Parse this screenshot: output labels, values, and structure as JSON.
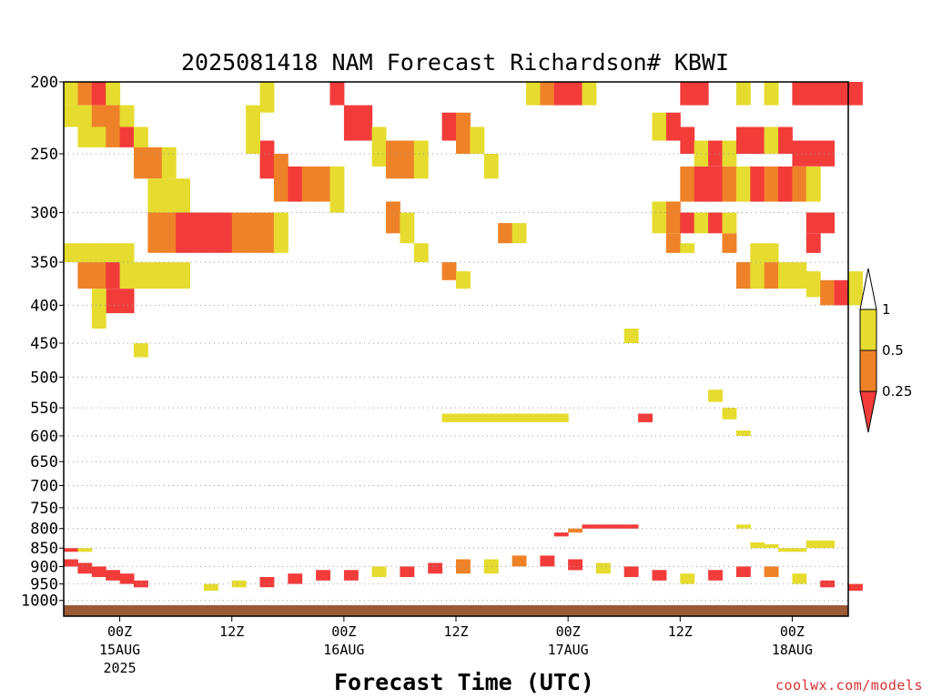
{
  "chart_data": {
    "type": "heatmap",
    "title": "2025081418 NAM Forecast Richardson# KBWI",
    "xlabel": "Forecast Time (UTC)",
    "ylabel": "",
    "y_ticks": [
      200,
      250,
      300,
      350,
      400,
      450,
      500,
      550,
      600,
      650,
      700,
      750,
      800,
      850,
      900,
      950,
      1000
    ],
    "y_scale": "log-pressure (inverted)",
    "x_ticks": [
      {
        "hour": 6,
        "label": "00Z",
        "sub": "15AUG",
        "sub2": "2025"
      },
      {
        "hour": 18,
        "label": "12Z",
        "sub": "",
        "sub2": ""
      },
      {
        "hour": 30,
        "label": "00Z",
        "sub": "16AUG",
        "sub2": ""
      },
      {
        "hour": 42,
        "label": "12Z",
        "sub": "",
        "sub2": ""
      },
      {
        "hour": 54,
        "label": "00Z",
        "sub": "17AUG",
        "sub2": ""
      },
      {
        "hour": 66,
        "label": "12Z",
        "sub": "",
        "sub2": ""
      },
      {
        "hour": 78,
        "label": "00Z",
        "sub": "18AUG",
        "sub2": ""
      }
    ],
    "x_range_hours": [
      0,
      84
    ],
    "grid": "dotted horizontal at pressure levels",
    "legend": {
      "placement": "right",
      "levels": [
        {
          "label": "1",
          "color": "#ffffff"
        },
        {
          "label": "0.5",
          "color": "#e5dc2f"
        },
        {
          "label": "0.25",
          "color": "#ef8228"
        },
        {
          "label": "",
          "color": "#f23c3a"
        }
      ]
    },
    "colors": {
      "lt1": "#e5dc2f",
      "lt05": "#ef8228",
      "lt025": "#f23c3a",
      "ground": "#9a5a36"
    },
    "cells": [
      [
        0,
        200,
        215,
        "y"
      ],
      [
        1,
        200,
        215,
        "o"
      ],
      [
        2,
        200,
        215,
        "r"
      ],
      [
        3,
        200,
        215,
        "y"
      ],
      [
        0,
        215,
        230,
        "y"
      ],
      [
        1,
        215,
        230,
        "y"
      ],
      [
        2,
        215,
        230,
        "o"
      ],
      [
        3,
        215,
        230,
        "o"
      ],
      [
        4,
        215,
        230,
        "y"
      ],
      [
        1,
        230,
        245,
        "y"
      ],
      [
        2,
        230,
        245,
        "y"
      ],
      [
        3,
        230,
        245,
        "o"
      ],
      [
        4,
        230,
        245,
        "r"
      ],
      [
        5,
        230,
        245,
        "y"
      ],
      [
        5,
        245,
        270,
        "o"
      ],
      [
        6,
        245,
        270,
        "o"
      ],
      [
        7,
        245,
        270,
        "y"
      ],
      [
        6,
        270,
        300,
        "y"
      ],
      [
        7,
        270,
        300,
        "y"
      ],
      [
        8,
        270,
        300,
        "y"
      ],
      [
        6,
        300,
        340,
        "o"
      ],
      [
        7,
        300,
        340,
        "o"
      ],
      [
        8,
        300,
        340,
        "r"
      ],
      [
        9,
        300,
        340,
        "r"
      ],
      [
        10,
        300,
        340,
        "r"
      ],
      [
        11,
        300,
        340,
        "r"
      ],
      [
        12,
        300,
        340,
        "o"
      ],
      [
        13,
        300,
        340,
        "o"
      ],
      [
        14,
        300,
        340,
        "o"
      ],
      [
        15,
        300,
        340,
        "y"
      ],
      [
        0,
        330,
        350,
        "y"
      ],
      [
        1,
        330,
        350,
        "y"
      ],
      [
        2,
        330,
        350,
        "y"
      ],
      [
        3,
        330,
        350,
        "y"
      ],
      [
        4,
        330,
        350,
        "y"
      ],
      [
        1,
        350,
        380,
        "o"
      ],
      [
        2,
        350,
        380,
        "o"
      ],
      [
        3,
        350,
        380,
        "r"
      ],
      [
        4,
        350,
        380,
        "y"
      ],
      [
        5,
        350,
        380,
        "y"
      ],
      [
        6,
        350,
        380,
        "y"
      ],
      [
        7,
        350,
        380,
        "y"
      ],
      [
        8,
        350,
        380,
        "y"
      ],
      [
        3,
        380,
        410,
        "r"
      ],
      [
        4,
        380,
        410,
        "r"
      ],
      [
        2,
        380,
        430,
        "y"
      ],
      [
        5,
        450,
        470,
        "y"
      ],
      [
        14,
        240,
        270,
        "r"
      ],
      [
        15,
        250,
        290,
        "o"
      ],
      [
        16,
        260,
        290,
        "r"
      ],
      [
        17,
        260,
        290,
        "o"
      ],
      [
        18,
        260,
        290,
        "o"
      ],
      [
        19,
        260,
        300,
        "y"
      ],
      [
        13,
        215,
        250,
        "y"
      ],
      [
        14,
        200,
        220,
        "y"
      ],
      [
        19,
        200,
        215,
        "r"
      ],
      [
        20,
        215,
        240,
        "r"
      ],
      [
        21,
        215,
        240,
        "r"
      ],
      [
        22,
        230,
        260,
        "y"
      ],
      [
        23,
        240,
        270,
        "o"
      ],
      [
        24,
        240,
        270,
        "o"
      ],
      [
        25,
        240,
        270,
        "y"
      ],
      [
        23,
        290,
        320,
        "o"
      ],
      [
        24,
        300,
        330,
        "y"
      ],
      [
        25,
        330,
        350,
        "y"
      ],
      [
        27,
        220,
        240,
        "r"
      ],
      [
        28,
        220,
        250,
        "o"
      ],
      [
        29,
        230,
        250,
        "y"
      ],
      [
        30,
        250,
        270,
        "y"
      ],
      [
        27,
        350,
        370,
        "o"
      ],
      [
        28,
        360,
        380,
        "y"
      ],
      [
        31,
        310,
        330,
        "o"
      ],
      [
        32,
        310,
        330,
        "y"
      ],
      [
        33,
        200,
        215,
        "y"
      ],
      [
        34,
        200,
        215,
        "o"
      ],
      [
        35,
        200,
        215,
        "r"
      ],
      [
        36,
        200,
        215,
        "r"
      ],
      [
        37,
        200,
        215,
        "y"
      ],
      [
        27,
        560,
        575,
        "y"
      ],
      [
        28,
        560,
        575,
        "y"
      ],
      [
        29,
        560,
        575,
        "y"
      ],
      [
        30,
        560,
        575,
        "y"
      ],
      [
        31,
        560,
        575,
        "y"
      ],
      [
        32,
        560,
        575,
        "y"
      ],
      [
        33,
        560,
        575,
        "y"
      ],
      [
        34,
        560,
        575,
        "y"
      ],
      [
        35,
        560,
        575,
        "y"
      ],
      [
        44,
        200,
        215,
        "r"
      ],
      [
        45,
        200,
        215,
        "r"
      ],
      [
        48,
        200,
        215,
        "y"
      ],
      [
        50,
        200,
        215,
        "y"
      ],
      [
        52,
        200,
        215,
        "r"
      ],
      [
        53,
        200,
        215,
        "r"
      ],
      [
        54,
        200,
        215,
        "r"
      ],
      [
        55,
        200,
        215,
        "r"
      ],
      [
        56,
        200,
        215,
        "r"
      ],
      [
        42,
        220,
        240,
        "y"
      ],
      [
        43,
        220,
        240,
        "r"
      ],
      [
        44,
        230,
        250,
        "r"
      ],
      [
        45,
        240,
        260,
        "y"
      ],
      [
        46,
        240,
        260,
        "r"
      ],
      [
        47,
        240,
        260,
        "y"
      ],
      [
        48,
        230,
        250,
        "r"
      ],
      [
        49,
        230,
        250,
        "r"
      ],
      [
        50,
        230,
        250,
        "y"
      ],
      [
        51,
        230,
        250,
        "r"
      ],
      [
        52,
        240,
        260,
        "r"
      ],
      [
        53,
        240,
        260,
        "r"
      ],
      [
        54,
        240,
        260,
        "r"
      ],
      [
        44,
        260,
        290,
        "o"
      ],
      [
        45,
        260,
        290,
        "r"
      ],
      [
        46,
        260,
        290,
        "r"
      ],
      [
        47,
        260,
        290,
        "o"
      ],
      [
        48,
        260,
        290,
        "y"
      ],
      [
        49,
        260,
        290,
        "r"
      ],
      [
        50,
        260,
        290,
        "o"
      ],
      [
        51,
        260,
        290,
        "r"
      ],
      [
        52,
        260,
        290,
        "o"
      ],
      [
        53,
        260,
        290,
        "y"
      ],
      [
        42,
        290,
        320,
        "y"
      ],
      [
        43,
        290,
        320,
        "o"
      ],
      [
        44,
        300,
        320,
        "r"
      ],
      [
        45,
        300,
        320,
        "y"
      ],
      [
        46,
        300,
        320,
        "r"
      ],
      [
        47,
        300,
        320,
        "y"
      ],
      [
        53,
        300,
        320,
        "r"
      ],
      [
        54,
        300,
        320,
        "r"
      ],
      [
        43,
        320,
        340,
        "o"
      ],
      [
        44,
        330,
        340,
        "y"
      ],
      [
        47,
        320,
        340,
        "o"
      ],
      [
        49,
        330,
        350,
        "y"
      ],
      [
        50,
        330,
        350,
        "y"
      ],
      [
        53,
        320,
        340,
        "r"
      ],
      [
        48,
        350,
        380,
        "o"
      ],
      [
        49,
        350,
        380,
        "y"
      ],
      [
        50,
        350,
        380,
        "o"
      ],
      [
        51,
        350,
        380,
        "y"
      ],
      [
        52,
        350,
        380,
        "y"
      ],
      [
        53,
        360,
        390,
        "y"
      ],
      [
        54,
        370,
        400,
        "o"
      ],
      [
        55,
        370,
        400,
        "r"
      ],
      [
        56,
        360,
        400,
        "y"
      ],
      [
        40,
        430,
        450,
        "y"
      ],
      [
        46,
        520,
        540,
        "y"
      ],
      [
        47,
        550,
        570,
        "y"
      ],
      [
        41,
        560,
        575,
        "r"
      ],
      [
        48,
        590,
        600,
        "y"
      ],
      [
        0,
        850,
        860,
        "r"
      ],
      [
        1,
        850,
        860,
        "y"
      ],
      [
        48,
        790,
        800,
        "y"
      ],
      [
        49,
        835,
        850,
        "y"
      ],
      [
        50,
        840,
        850,
        "y"
      ],
      [
        51,
        850,
        860,
        "y"
      ],
      [
        52,
        850,
        860,
        "y"
      ],
      [
        53,
        830,
        850,
        "y"
      ],
      [
        54,
        830,
        850,
        "y"
      ],
      [
        37,
        790,
        800,
        "r"
      ],
      [
        38,
        790,
        800,
        "r"
      ],
      [
        39,
        790,
        800,
        "r"
      ],
      [
        40,
        790,
        800,
        "r"
      ],
      [
        36,
        800,
        810,
        "o"
      ],
      [
        35,
        810,
        820,
        "r"
      ],
      [
        0,
        880,
        900,
        "r"
      ],
      [
        1,
        890,
        920,
        "r"
      ],
      [
        2,
        900,
        930,
        "r"
      ],
      [
        3,
        910,
        940,
        "r"
      ],
      [
        4,
        920,
        950,
        "r"
      ],
      [
        5,
        940,
        960,
        "r"
      ],
      [
        10,
        950,
        970,
        "y"
      ],
      [
        12,
        940,
        960,
        "y"
      ],
      [
        14,
        930,
        960,
        "r"
      ],
      [
        16,
        920,
        950,
        "r"
      ],
      [
        18,
        910,
        940,
        "r"
      ],
      [
        20,
        910,
        940,
        "r"
      ],
      [
        22,
        900,
        930,
        "y"
      ],
      [
        24,
        900,
        930,
        "r"
      ],
      [
        26,
        890,
        920,
        "r"
      ],
      [
        28,
        880,
        920,
        "o"
      ],
      [
        30,
        880,
        920,
        "y"
      ],
      [
        32,
        870,
        900,
        "o"
      ],
      [
        34,
        870,
        900,
        "r"
      ],
      [
        36,
        880,
        910,
        "r"
      ],
      [
        38,
        890,
        920,
        "y"
      ],
      [
        40,
        900,
        930,
        "r"
      ],
      [
        42,
        910,
        940,
        "r"
      ],
      [
        44,
        920,
        950,
        "y"
      ],
      [
        46,
        910,
        940,
        "r"
      ],
      [
        48,
        900,
        930,
        "r"
      ],
      [
        50,
        900,
        930,
        "o"
      ],
      [
        52,
        920,
        950,
        "y"
      ],
      [
        54,
        940,
        960,
        "r"
      ],
      [
        56,
        950,
        970,
        "r"
      ]
    ]
  },
  "footer": {
    "credit": "coolwx.com/models"
  }
}
